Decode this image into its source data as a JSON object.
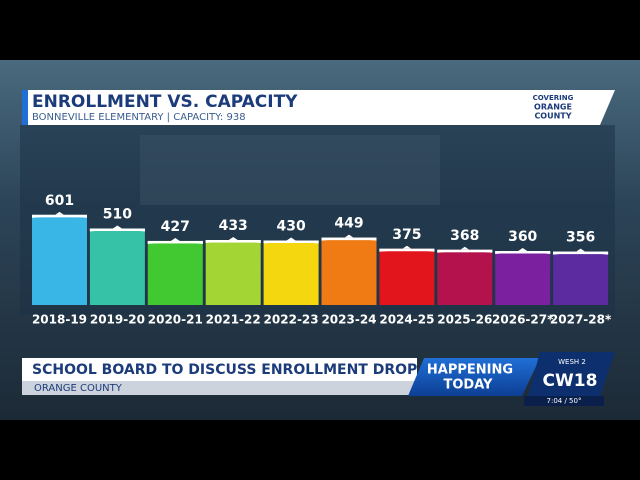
{
  "chart_data": {
    "type": "bar",
    "title": "ENROLLMENT VS. CAPACITY",
    "subtitle": "BONNEVILLE ELEMENTARY | CAPACITY: 938",
    "categories": [
      "2018-19",
      "2019-20",
      "2020-21",
      "2021-22",
      "2022-23",
      "2023-24",
      "2024-25",
      "2025-26",
      "2026-27*",
      "2027-28*"
    ],
    "values": [
      601,
      510,
      427,
      433,
      430,
      449,
      375,
      368,
      360,
      356
    ],
    "colors": [
      "#39b6e6",
      "#35c2a6",
      "#42c830",
      "#a3d534",
      "#f4d70f",
      "#f07a13",
      "#e1151b",
      "#b3124c",
      "#7b209f",
      "#5b2b9f"
    ]
  },
  "brand": {
    "line1": "COVERING",
    "line2": "ORANGE",
    "line3": "COUNTY"
  },
  "lower_third": {
    "headline": "SCHOOL BOARD TO DISCUSS ENROLLMENT DROP",
    "location": "ORANGE COUNTY",
    "tag1": "HAPPENING",
    "tag2": "TODAY",
    "station": "CW18",
    "station_sub": "WESH 2",
    "time": "7:04 / 50°"
  }
}
